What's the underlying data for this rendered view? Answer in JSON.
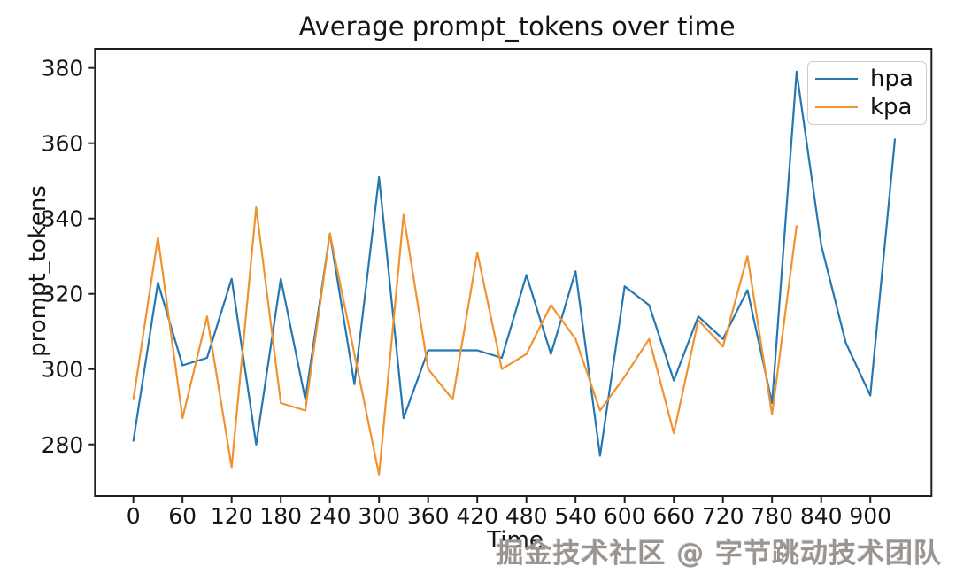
{
  "chart_data": {
    "type": "line",
    "title": "Average prompt_tokens over time",
    "xlabel": "Time",
    "ylabel": "prompt_tokens",
    "xlim": [
      -46.9,
      974.7
    ],
    "ylim": [
      266.3,
      385.1
    ],
    "xticks": [
      0,
      60,
      120,
      180,
      240,
      300,
      360,
      420,
      480,
      540,
      600,
      660,
      720,
      780,
      840,
      900
    ],
    "yticks": [
      280,
      300,
      320,
      340,
      360,
      380
    ],
    "grid": false,
    "legend_position": "upper right",
    "series": [
      {
        "name": "hpa",
        "color": "#2577b1",
        "x": [
          0,
          30,
          60,
          90,
          120,
          150,
          180,
          210,
          240,
          270,
          300,
          330,
          360,
          390,
          420,
          450,
          480,
          510,
          540,
          570,
          600,
          630,
          660,
          690,
          720,
          750,
          780,
          810,
          840,
          870,
          900,
          930
        ],
        "y": [
          281,
          323,
          301,
          303,
          324,
          280,
          324,
          292,
          336,
          296,
          351,
          287,
          305,
          305,
          305,
          303,
          325,
          304,
          326,
          277,
          322,
          317,
          297,
          314,
          308,
          321,
          291,
          379,
          333,
          307,
          293,
          361
        ]
      },
      {
        "name": "kpa",
        "color": "#f0922f",
        "x": [
          0,
          30,
          60,
          90,
          120,
          150,
          180,
          210,
          240,
          270,
          300,
          330,
          360,
          390,
          420,
          450,
          480,
          510,
          540,
          570,
          600,
          630,
          660,
          690,
          720,
          750,
          780,
          810
        ],
        "y": [
          292,
          335,
          287,
          314,
          274,
          343,
          291,
          289,
          336,
          304,
          272,
          341,
          300,
          292,
          331,
          300,
          304,
          317,
          308,
          289,
          298,
          308,
          283,
          313,
          306,
          330,
          288,
          338
        ]
      }
    ]
  },
  "watermark": {
    "text": "掘金技术社区 @ 字节跳动技术团队"
  }
}
